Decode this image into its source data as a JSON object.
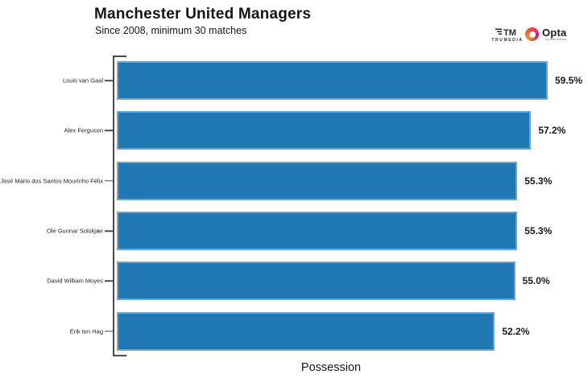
{
  "header": {
    "logos": {
      "trumedia_mark": "TM",
      "trumedia_label": "TRUMEDIA",
      "opta_label": "Opta",
      "opta_tagline": "by Stats Perform"
    }
  },
  "chart_data": {
    "type": "bar",
    "orientation": "horizontal",
    "title": "Manchester United Managers",
    "subtitle": "Since 2008, minimum 30 matches",
    "xlabel": "Possession",
    "ylabel": "",
    "categories": [
      "Louis van Gaal",
      "Alex Ferguson",
      "José Mário dos Santos Mourinho Félix",
      "Ole Gunnar Solskjær",
      "David William Moyes",
      "Erik ten Hag"
    ],
    "values": [
      59.5,
      57.2,
      55.3,
      55.3,
      55.0,
      52.2
    ],
    "value_labels": [
      "59.5%",
      "57.2%",
      "55.3%",
      "55.3%",
      "55.0%",
      "52.2%"
    ],
    "xlim": [
      0,
      59.5
    ],
    "grid": false,
    "legend": null,
    "bar_color": "#1f77b4",
    "bar_edge_color": "#6ea6cf",
    "axis_color": "#4a4a4a"
  }
}
